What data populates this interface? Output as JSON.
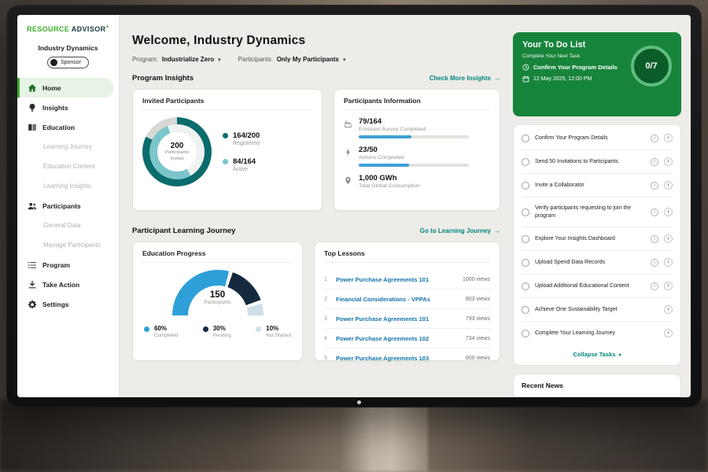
{
  "brand": {
    "resource": "RESOURCE",
    "advisor": "ADVISOR",
    "plus": "+"
  },
  "colors": {
    "brand_green": "#3dae2c",
    "todo_green": "#17843b",
    "teal_link": "#00857d",
    "progress_blue": "#3f9fd8"
  },
  "sidebar": {
    "org": "Industry Dynamics",
    "badge": "Sponsor",
    "items": [
      {
        "label": "Home",
        "icon": "home",
        "active": true
      },
      {
        "label": "Insights",
        "icon": "insights"
      },
      {
        "label": "Education",
        "icon": "education"
      },
      {
        "label": "Learning Journey",
        "sub": true
      },
      {
        "label": "Education Content",
        "sub": true
      },
      {
        "label": "Learning Insights",
        "sub": true
      },
      {
        "label": "Participants",
        "icon": "participants"
      },
      {
        "label": "General Data",
        "sub": true
      },
      {
        "label": "Manage Participants",
        "sub": true
      },
      {
        "label": "Program",
        "icon": "program"
      },
      {
        "label": "Take Action",
        "icon": "take-action"
      },
      {
        "label": "Settings",
        "icon": "settings"
      }
    ]
  },
  "header": {
    "title": "Welcome, Industry Dynamics",
    "filters": [
      {
        "label": "Program:",
        "value": "Industrialize Zero"
      },
      {
        "label": "Participants:",
        "value": "Only My Participants"
      }
    ]
  },
  "program_insights": {
    "title": "Program Insights",
    "link": "Check More Insights",
    "invited": {
      "title": "Invited Participants",
      "center_value": "200",
      "center_label": "Participants Invited",
      "legend": [
        {
          "value": "164/200",
          "label": "Registered",
          "color": "#0a6c6d"
        },
        {
          "value": "84/164",
          "label": "Active",
          "color": "#7ac6ca"
        }
      ]
    },
    "info": {
      "title": "Participants Information",
      "stats": [
        {
          "icon": "survey",
          "value": "79/164",
          "label": "Emission Survey Completed",
          "progress": 48
        },
        {
          "icon": "actions",
          "value": "23/50",
          "label": "Actions Completed",
          "progress": 46
        },
        {
          "icon": "consumption",
          "value": "1,000 GWh",
          "label": "Total Global Consumption"
        }
      ]
    }
  },
  "learning": {
    "title": "Participant Learning Journey",
    "link": "Go to Learning Journey",
    "education": {
      "title": "Education Progress",
      "center_value": "150",
      "center_label": "Participants",
      "legend": [
        {
          "value": "60%",
          "label": "Completed",
          "color": "#2f9fd8"
        },
        {
          "value": "30%",
          "label": "Pending",
          "color": "#14293e"
        },
        {
          "value": "10%",
          "label": "Not Started",
          "color": "#cfdfe9"
        }
      ]
    },
    "lessons": {
      "title": "Top Lessons",
      "rows": [
        {
          "rank": "1",
          "title": "Power Purchase Agreements 101",
          "views": "1000 views"
        },
        {
          "rank": "2",
          "title": "Financial Considerations - VPPAs",
          "views": "803 views"
        },
        {
          "rank": "3",
          "title": "Power Purchase Agreements 101",
          "views": "793 views"
        },
        {
          "rank": "4",
          "title": "Power Purchase Agreements 102",
          "views": "734 views"
        },
        {
          "rank": "5",
          "title": "Power Purchase Agreements 103",
          "views": "600 views"
        }
      ]
    }
  },
  "todo": {
    "title": "Your To Do List",
    "subtitle": "Complete Your Next Task:",
    "next_task": "Confirm Your Program Details",
    "next_task_icon": "clock",
    "due": "12 May 2025, 12:00 PM",
    "due_icon": "calendar",
    "progress": "0/7",
    "tasks": [
      {
        "label": "Confirm Your Program Details",
        "info": true
      },
      {
        "label": "Send 50 Invitations to Participants",
        "info": true
      },
      {
        "label": "Invite a Collaborator",
        "info": true
      },
      {
        "label": "Verify participants requesting to join the program",
        "info": true
      },
      {
        "label": "Explore Your Insights Dashboard",
        "info": true
      },
      {
        "label": "Upload Spend Data Records",
        "info": true
      },
      {
        "label": "Upload Additional Educational Content",
        "info": true
      },
      {
        "label": "Achieve One Sustainability Target",
        "info": false
      },
      {
        "label": "Complete Your Learning Journey",
        "info": false
      }
    ],
    "collapse": "Collapse Tasks"
  },
  "news": {
    "title": "Recent News"
  }
}
